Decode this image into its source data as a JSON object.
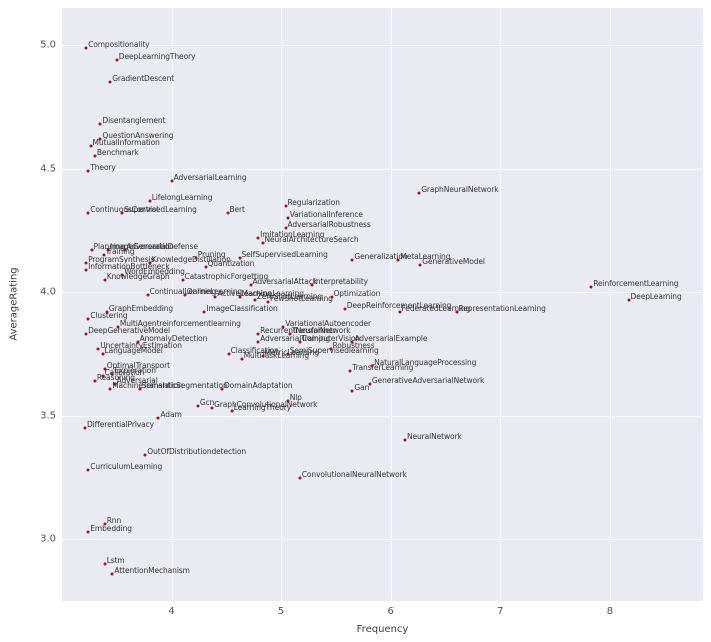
{
  "chart_data": {
    "type": "scatter",
    "title": "",
    "xlabel": "Frequency",
    "ylabel": "AverageRating",
    "xlim": [
      3.0,
      8.85
    ],
    "ylim": [
      2.75,
      5.15
    ],
    "grid": true,
    "legend": "none",
    "plot_bg": "#eaeaf2",
    "grid_color": "#ffffff",
    "point_color": "#8b1f24",
    "label_color": "#333333",
    "xticks": [
      {
        "value": 4,
        "label": "4"
      },
      {
        "value": 5,
        "label": "5"
      },
      {
        "value": 6,
        "label": "6"
      },
      {
        "value": 7,
        "label": "7"
      },
      {
        "value": 8,
        "label": "8"
      }
    ],
    "yticks": [
      {
        "value": 3.0,
        "label": "3.0"
      },
      {
        "value": 3.5,
        "label": "3.5"
      },
      {
        "value": 4.0,
        "label": "4.0"
      },
      {
        "value": 4.5,
        "label": "4.5"
      },
      {
        "value": 5.0,
        "label": "5.0"
      }
    ],
    "points": [
      {
        "label": "Compositionality",
        "x": 3.22,
        "y": 4.99
      },
      {
        "label": "DeepLearningTheory",
        "x": 3.5,
        "y": 4.94
      },
      {
        "label": "GradientDescent",
        "x": 3.44,
        "y": 4.85
      },
      {
        "label": "Disentanglement",
        "x": 3.35,
        "y": 4.68
      },
      {
        "label": "QuestionAnswering",
        "x": 3.35,
        "y": 4.62
      },
      {
        "label": "MutualInformation",
        "x": 3.26,
        "y": 4.59
      },
      {
        "label": "Benchmark",
        "x": 3.3,
        "y": 4.55
      },
      {
        "label": "Theory",
        "x": 3.24,
        "y": 4.49
      },
      {
        "label": "AdversarialLearning",
        "x": 4.0,
        "y": 4.45
      },
      {
        "label": "GraphNeuralNetwork",
        "x": 6.26,
        "y": 4.4
      },
      {
        "label": "LifelongLearning",
        "x": 3.8,
        "y": 4.37
      },
      {
        "label": "ContinuousControl",
        "x": 3.24,
        "y": 4.32
      },
      {
        "label": "SupervisedLearning",
        "x": 3.55,
        "y": 4.32
      },
      {
        "label": "Bert",
        "x": 4.51,
        "y": 4.32
      },
      {
        "label": "Regularization",
        "x": 5.04,
        "y": 4.35
      },
      {
        "label": "VariationalInference",
        "x": 5.06,
        "y": 4.3
      },
      {
        "label": "AdversarialRobustness",
        "x": 5.04,
        "y": 4.26
      },
      {
        "label": "ImitationLearning",
        "x": 4.79,
        "y": 4.22
      },
      {
        "label": "NeuralArchitectureSearch",
        "x": 4.83,
        "y": 4.2
      },
      {
        "label": "Planning",
        "x": 3.27,
        "y": 4.17
      },
      {
        "label": "ImageGeneration",
        "x": 3.42,
        "y": 4.17
      },
      {
        "label": "AdversarialDefense",
        "x": 3.57,
        "y": 4.17
      },
      {
        "label": "Training",
        "x": 3.38,
        "y": 4.15
      },
      {
        "label": "Pruning",
        "x": 4.22,
        "y": 4.14
      },
      {
        "label": "SelfSupervisedLearning",
        "x": 4.62,
        "y": 4.14
      },
      {
        "label": "Generalization",
        "x": 5.65,
        "y": 4.13
      },
      {
        "label": "MetaLearning",
        "x": 6.07,
        "y": 4.13
      },
      {
        "label": "GenerativeModel",
        "x": 6.27,
        "y": 4.11
      },
      {
        "label": "ProgramSynthesis",
        "x": 3.22,
        "y": 4.12
      },
      {
        "label": "KnowledgeDistillation",
        "x": 3.8,
        "y": 4.12
      },
      {
        "label": "InformationBottleneck",
        "x": 3.22,
        "y": 4.09
      },
      {
        "label": "Quantization",
        "x": 4.31,
        "y": 4.1
      },
      {
        "label": "WordEmbedding",
        "x": 3.55,
        "y": 4.07
      },
      {
        "label": "KnowledgeGraph",
        "x": 3.39,
        "y": 4.05
      },
      {
        "label": "CatastrophicForgetting",
        "x": 4.1,
        "y": 4.05
      },
      {
        "label": "AdversarialAttack",
        "x": 4.72,
        "y": 4.03
      },
      {
        "label": "Interpretability",
        "x": 5.28,
        "y": 4.03
      },
      {
        "label": "ReinforcementLearning",
        "x": 7.83,
        "y": 4.02
      },
      {
        "label": "DeepLearning",
        "x": 8.17,
        "y": 3.97
      },
      {
        "label": "ContinualLearning",
        "x": 3.78,
        "y": 3.99
      },
      {
        "label": "OnlineLearning",
        "x": 4.12,
        "y": 3.99
      },
      {
        "label": "ActiveLearning",
        "x": 4.4,
        "y": 3.98
      },
      {
        "label": "MachineLearning",
        "x": 4.62,
        "y": 3.98
      },
      {
        "label": "ZeroShotLearning",
        "x": 4.76,
        "y": 3.97
      },
      {
        "label": "FewShotLearning",
        "x": 4.88,
        "y": 3.96
      },
      {
        "label": "Optimization",
        "x": 5.46,
        "y": 3.98
      },
      {
        "label": "GraphEmbedding",
        "x": 3.41,
        "y": 3.92
      },
      {
        "label": "ImageClassification",
        "x": 4.3,
        "y": 3.92
      },
      {
        "label": "DeepReinforcementLearning",
        "x": 5.58,
        "y": 3.93
      },
      {
        "label": "FederatedLearning",
        "x": 6.08,
        "y": 3.92
      },
      {
        "label": "RepresentationLearning",
        "x": 6.6,
        "y": 3.92
      },
      {
        "label": "Clustering",
        "x": 3.24,
        "y": 3.89
      },
      {
        "label": "MultiAgentreinforcementlearning",
        "x": 3.51,
        "y": 3.86
      },
      {
        "label": "VariationalAutoencoder",
        "x": 5.02,
        "y": 3.86
      },
      {
        "label": "DeepGenerativeModel",
        "x": 3.22,
        "y": 3.83
      },
      {
        "label": "RecurrentNeuralNetwork",
        "x": 4.79,
        "y": 3.83
      },
      {
        "label": "Transformer",
        "x": 5.08,
        "y": 3.83
      },
      {
        "label": "AnomalyDetection",
        "x": 3.69,
        "y": 3.8
      },
      {
        "label": "AdversarialTraining",
        "x": 4.79,
        "y": 3.8
      },
      {
        "label": "ComputerVision",
        "x": 5.17,
        "y": 3.8
      },
      {
        "label": "AdversarialExample",
        "x": 5.65,
        "y": 3.8
      },
      {
        "label": "UncertaintyEstimation",
        "x": 3.33,
        "y": 3.77
      },
      {
        "label": "Robustness",
        "x": 5.45,
        "y": 3.77
      },
      {
        "label": "LanguageModel",
        "x": 3.37,
        "y": 3.75
      },
      {
        "label": "Classification",
        "x": 4.52,
        "y": 3.75
      },
      {
        "label": "MultiTaskLearning",
        "x": 4.64,
        "y": 3.73
      },
      {
        "label": "MetricLearning",
        "x": 4.83,
        "y": 3.74
      },
      {
        "label": "SemiSupervisedlearning",
        "x": 5.06,
        "y": 3.75
      },
      {
        "label": "OptimalTransport",
        "x": 3.39,
        "y": 3.69
      },
      {
        "label": "TransferLearning",
        "x": 5.63,
        "y": 3.68
      },
      {
        "label": "NaturalLanguageProcessing",
        "x": 5.83,
        "y": 3.7
      },
      {
        "label": "Calibration",
        "x": 3.37,
        "y": 3.66
      },
      {
        "label": "Exploration",
        "x": 3.46,
        "y": 3.67
      },
      {
        "label": "Reasoning",
        "x": 3.3,
        "y": 3.64
      },
      {
        "label": "Adversarial",
        "x": 3.48,
        "y": 3.63
      },
      {
        "label": "GenerativeAdversarialNetwork",
        "x": 5.81,
        "y": 3.63
      },
      {
        "label": "MachineTranslation",
        "x": 3.44,
        "y": 3.61
      },
      {
        "label": "SemanticSegmentation",
        "x": 3.71,
        "y": 3.61
      },
      {
        "label": "DomainAdaptation",
        "x": 4.46,
        "y": 3.61
      },
      {
        "label": "Gan",
        "x": 5.65,
        "y": 3.6
      },
      {
        "label": "Nlp",
        "x": 5.06,
        "y": 3.56
      },
      {
        "label": "Gcn",
        "x": 4.24,
        "y": 3.54
      },
      {
        "label": "GraphConvolutionalNetwork",
        "x": 4.37,
        "y": 3.53
      },
      {
        "label": "LearningTheory",
        "x": 4.55,
        "y": 3.52
      },
      {
        "label": "Adam",
        "x": 3.88,
        "y": 3.49
      },
      {
        "label": "DifferentialPrivacy",
        "x": 3.21,
        "y": 3.45
      },
      {
        "label": "NeuralNetwork",
        "x": 6.13,
        "y": 3.4
      },
      {
        "label": "OutOfDistributiondetection",
        "x": 3.76,
        "y": 3.34
      },
      {
        "label": "CurriculumLearning",
        "x": 3.24,
        "y": 3.28
      },
      {
        "label": "ConvolutionalNeuralNetwork",
        "x": 5.17,
        "y": 3.25
      },
      {
        "label": "Rnn",
        "x": 3.39,
        "y": 3.06
      },
      {
        "label": "Embedding",
        "x": 3.24,
        "y": 3.03
      },
      {
        "label": "Lstm",
        "x": 3.39,
        "y": 2.9
      },
      {
        "label": "AttentionMechanism",
        "x": 3.46,
        "y": 2.86
      }
    ]
  }
}
